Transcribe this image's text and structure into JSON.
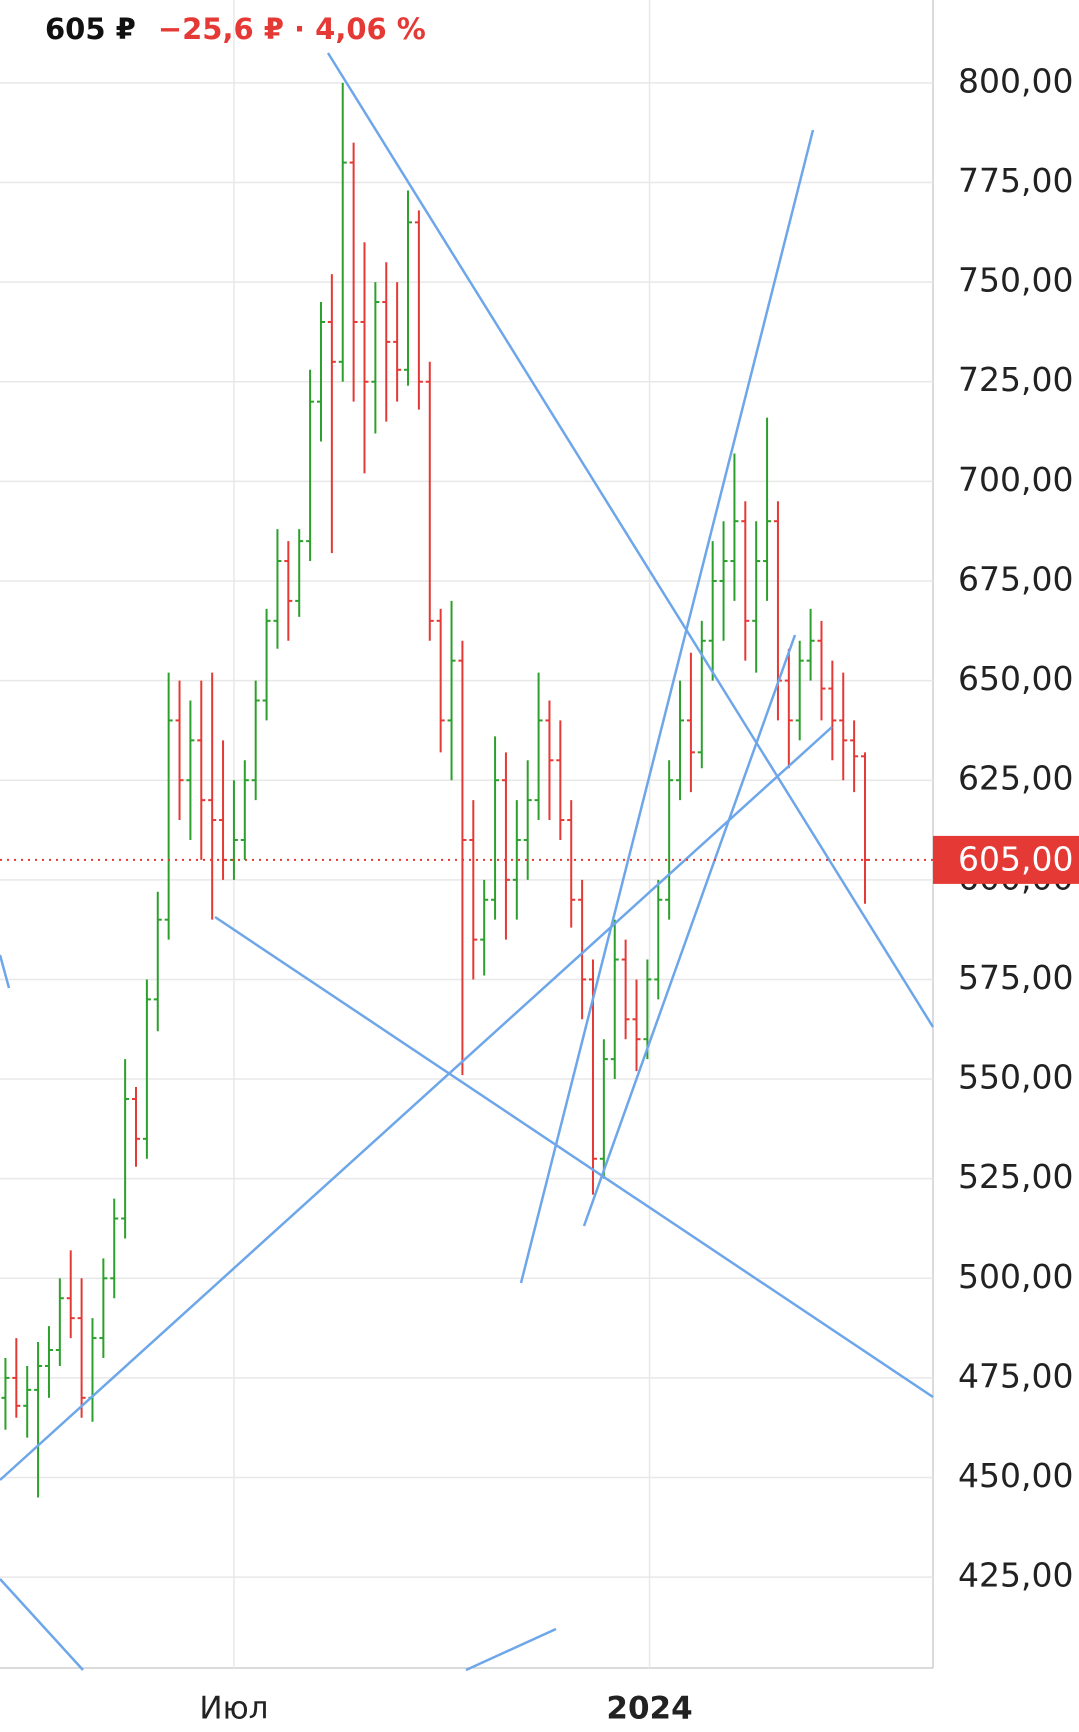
{
  "header": {
    "price": "605 ₽",
    "change": "−25,6 ₽ · 4,06 %"
  },
  "chart_data": {
    "type": "ohlc",
    "open": [
      470,
      475,
      468,
      472,
      478,
      482,
      495,
      490,
      470,
      485,
      500,
      515,
      545,
      535,
      570,
      590,
      640,
      625,
      635,
      620,
      615,
      605,
      610,
      625,
      645,
      665,
      680,
      670,
      685,
      720,
      740,
      730,
      780,
      740,
      725,
      745,
      735,
      728,
      765,
      725,
      665,
      640,
      655,
      610,
      585,
      595,
      625,
      600,
      610,
      620,
      640,
      630,
      615,
      595,
      575,
      530,
      555,
      580,
      565,
      560,
      575,
      595,
      625,
      640,
      632,
      660,
      675,
      680,
      690,
      665,
      680,
      690,
      650,
      640,
      655,
      660,
      648,
      640,
      635,
      631
    ],
    "high": [
      480,
      485,
      478,
      484,
      488,
      500,
      507,
      500,
      490,
      505,
      520,
      555,
      548,
      575,
      597,
      652,
      650,
      645,
      650,
      652,
      635,
      625,
      630,
      650,
      668,
      688,
      685,
      688,
      728,
      745,
      752,
      800,
      785,
      760,
      750,
      755,
      750,
      773,
      768,
      730,
      668,
      670,
      660,
      620,
      600,
      636,
      632,
      620,
      630,
      652,
      645,
      640,
      620,
      600,
      580,
      560,
      590,
      585,
      575,
      580,
      600,
      630,
      650,
      657,
      665,
      685,
      690,
      707,
      695,
      690,
      716,
      695,
      658,
      660,
      668,
      665,
      655,
      652,
      640,
      632
    ],
    "low": [
      462,
      465,
      460,
      445,
      470,
      478,
      485,
      465,
      464,
      480,
      495,
      510,
      528,
      530,
      562,
      585,
      615,
      610,
      605,
      590,
      600,
      600,
      605,
      620,
      640,
      658,
      660,
      666,
      680,
      710,
      682,
      725,
      720,
      702,
      712,
      715,
      720,
      724,
      718,
      660,
      632,
      625,
      551,
      575,
      576,
      590,
      585,
      590,
      600,
      615,
      615,
      610,
      588,
      565,
      521,
      525,
      550,
      560,
      552,
      555,
      570,
      590,
      620,
      622,
      628,
      650,
      660,
      670,
      655,
      652,
      670,
      640,
      628,
      635,
      650,
      640,
      630,
      625,
      622,
      594
    ],
    "close": [
      475,
      468,
      472,
      478,
      482,
      495,
      490,
      470,
      485,
      500,
      515,
      545,
      535,
      570,
      590,
      640,
      625,
      635,
      620,
      615,
      605,
      610,
      625,
      645,
      665,
      680,
      670,
      685,
      720,
      740,
      730,
      780,
      740,
      725,
      745,
      735,
      728,
      765,
      725,
      665,
      640,
      655,
      610,
      585,
      595,
      625,
      600,
      610,
      620,
      640,
      630,
      615,
      595,
      575,
      530,
      555,
      580,
      565,
      560,
      575,
      595,
      625,
      640,
      632,
      660,
      675,
      680,
      690,
      665,
      680,
      690,
      650,
      640,
      655,
      660,
      648,
      640,
      635,
      631,
      605
    ],
    "up_color": "#2ca02c",
    "down_color": "#e53935",
    "xlim": [
      -0.5,
      85.25
    ],
    "xticks": [
      {
        "value": 21,
        "label": "Июл"
      },
      {
        "value": 59.2,
        "label": "2024"
      }
    ],
    "ylim": [
      402.2,
      820.8
    ],
    "yticks": [
      {
        "value": 425,
        "label": "425,00"
      },
      {
        "value": 450,
        "label": "450,00"
      },
      {
        "value": 475,
        "label": "475,00"
      },
      {
        "value": 500,
        "label": "500,00"
      },
      {
        "value": 525,
        "label": "525,00"
      },
      {
        "value": 550,
        "label": "550,00"
      },
      {
        "value": 575,
        "label": "575,00"
      },
      {
        "value": 600,
        "label": "600,00"
      },
      {
        "value": 625,
        "label": "625,00"
      },
      {
        "value": 650,
        "label": "650,00"
      },
      {
        "value": 675,
        "label": "675,00"
      },
      {
        "value": 700,
        "label": "700,00"
      },
      {
        "value": 725,
        "label": "725,00"
      },
      {
        "value": 750,
        "label": "750,00"
      },
      {
        "value": 775,
        "label": "775,00"
      },
      {
        "value": 800,
        "label": "800,00"
      }
    ],
    "last_price": {
      "value": 605,
      "label": "605,00"
    },
    "grid": true
  }
}
